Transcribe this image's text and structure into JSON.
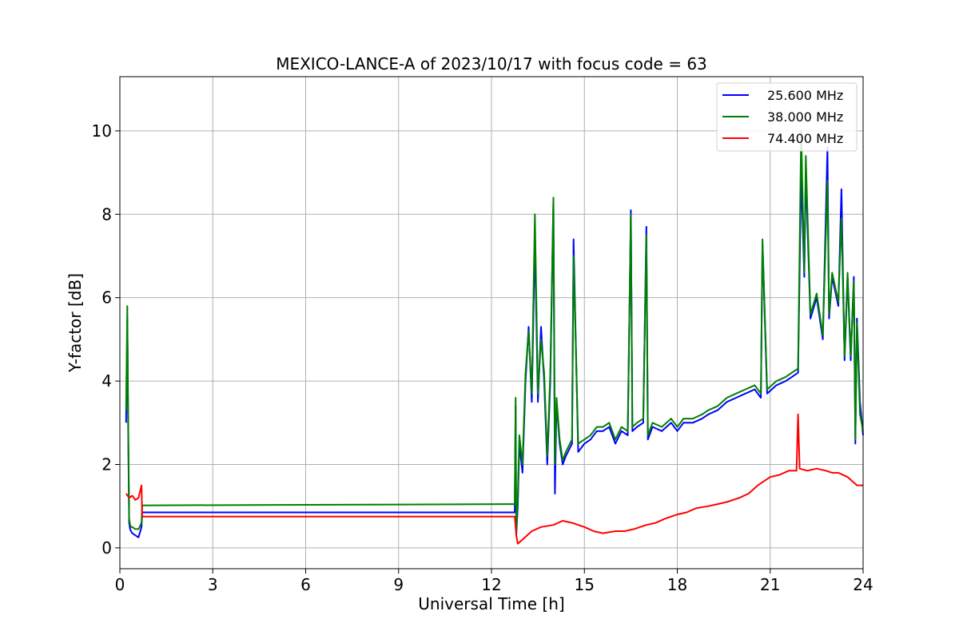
{
  "chart_data": {
    "type": "line",
    "title": "MEXICO-LANCE-A of 2023/10/17 with focus code = 63",
    "xlabel": "Universal Time [h]",
    "ylabel": "Y-factor [dB]",
    "xlim": [
      0,
      24
    ],
    "ylim": [
      -0.5,
      11.3
    ],
    "xticks": [
      0,
      3,
      6,
      9,
      12,
      15,
      18,
      21,
      24
    ],
    "yticks": [
      0,
      2,
      4,
      6,
      8,
      10
    ],
    "grid": true,
    "legend_position": "top-right",
    "series": [
      {
        "name": "25.600 MHz",
        "color": "#0000ff",
        "x": [
          0.2,
          0.24,
          0.27,
          0.3,
          0.33,
          0.36,
          0.4,
          0.5,
          0.6,
          0.7,
          0.72,
          12.75,
          12.78,
          12.8,
          12.85,
          12.9,
          13.0,
          13.1,
          13.2,
          13.3,
          13.4,
          13.5,
          13.6,
          13.7,
          13.8,
          13.9,
          14.0,
          14.05,
          14.1,
          14.2,
          14.3,
          14.4,
          14.6,
          14.65,
          14.8,
          15.0,
          15.2,
          15.4,
          15.6,
          15.8,
          16.0,
          16.2,
          16.4,
          16.5,
          16.55,
          16.7,
          16.9,
          17.0,
          17.05,
          17.2,
          17.5,
          17.8,
          18.0,
          18.2,
          18.5,
          18.8,
          19.0,
          19.3,
          19.6,
          19.9,
          20.2,
          20.5,
          20.7,
          20.75,
          20.9,
          21.2,
          21.5,
          21.7,
          21.9,
          22.0,
          22.1,
          22.15,
          22.3,
          22.5,
          22.7,
          22.85,
          22.9,
          23.0,
          23.2,
          23.3,
          23.4,
          23.5,
          23.6,
          23.7,
          23.75,
          23.8,
          23.9,
          24.0
        ],
        "values": [
          3.0,
          5.5,
          2.6,
          0.6,
          0.45,
          0.4,
          0.35,
          0.3,
          0.25,
          0.5,
          0.85,
          0.85,
          3.4,
          0.3,
          1.0,
          2.5,
          1.8,
          4.0,
          5.3,
          3.5,
          7.4,
          3.5,
          5.3,
          4.0,
          2.0,
          4.0,
          8.3,
          1.3,
          3.5,
          2.5,
          2.0,
          2.2,
          2.5,
          7.4,
          2.3,
          2.5,
          2.6,
          2.8,
          2.8,
          2.9,
          2.5,
          2.8,
          2.7,
          8.1,
          2.8,
          2.9,
          3.0,
          7.7,
          2.6,
          2.9,
          2.8,
          3.0,
          2.8,
          3.0,
          3.0,
          3.1,
          3.2,
          3.3,
          3.5,
          3.6,
          3.7,
          3.8,
          3.6,
          7.3,
          3.7,
          3.9,
          4.0,
          4.1,
          4.2,
          9.0,
          6.5,
          9.0,
          5.5,
          6.0,
          5.0,
          9.6,
          5.5,
          6.5,
          5.8,
          8.6,
          4.5,
          6.5,
          4.5,
          6.5,
          2.5,
          5.5,
          3.5,
          2.7
        ]
      },
      {
        "name": "38.000 MHz",
        "color": "#008000",
        "x": [
          0.2,
          0.24,
          0.27,
          0.3,
          0.33,
          0.36,
          0.4,
          0.5,
          0.6,
          0.7,
          0.72,
          12.75,
          12.78,
          12.8,
          12.85,
          12.9,
          13.0,
          13.1,
          13.2,
          13.3,
          13.4,
          13.5,
          13.6,
          13.7,
          13.8,
          13.9,
          14.0,
          14.05,
          14.1,
          14.2,
          14.3,
          14.4,
          14.6,
          14.65,
          14.8,
          15.0,
          15.2,
          15.4,
          15.6,
          15.8,
          16.0,
          16.2,
          16.4,
          16.5,
          16.55,
          16.7,
          16.9,
          17.0,
          17.05,
          17.2,
          17.5,
          17.8,
          18.0,
          18.2,
          18.5,
          18.8,
          19.0,
          19.3,
          19.6,
          19.9,
          20.2,
          20.5,
          20.7,
          20.75,
          20.9,
          21.2,
          21.5,
          21.7,
          21.9,
          22.0,
          22.1,
          22.15,
          22.3,
          22.5,
          22.7,
          22.85,
          22.9,
          23.0,
          23.2,
          23.3,
          23.4,
          23.5,
          23.6,
          23.7,
          23.75,
          23.8,
          23.9,
          24.0
        ],
        "values": [
          3.3,
          5.8,
          2.9,
          0.7,
          0.55,
          0.5,
          0.5,
          0.45,
          0.45,
          0.6,
          1.02,
          1.05,
          3.6,
          0.4,
          1.2,
          2.7,
          2.0,
          4.2,
          5.2,
          3.7,
          8.0,
          3.7,
          5.0,
          4.2,
          2.2,
          4.2,
          8.4,
          2.0,
          3.6,
          2.6,
          2.1,
          2.3,
          2.6,
          7.0,
          2.5,
          2.6,
          2.7,
          2.9,
          2.9,
          3.0,
          2.6,
          2.9,
          2.8,
          8.0,
          2.9,
          3.0,
          3.1,
          7.5,
          2.7,
          3.0,
          2.9,
          3.1,
          2.9,
          3.1,
          3.1,
          3.2,
          3.3,
          3.4,
          3.6,
          3.7,
          3.8,
          3.9,
          3.7,
          7.4,
          3.8,
          4.0,
          4.1,
          4.2,
          4.3,
          10.0,
          6.6,
          9.4,
          5.6,
          6.1,
          5.1,
          8.8,
          5.6,
          6.6,
          5.9,
          7.9,
          4.6,
          6.6,
          4.6,
          6.4,
          2.6,
          5.4,
          3.2,
          2.8
        ]
      },
      {
        "name": "74.400 MHz",
        "color": "#ff0000",
        "x": [
          0.2,
          0.3,
          0.4,
          0.5,
          0.6,
          0.7,
          0.72,
          12.75,
          12.8,
          12.85,
          13.0,
          13.3,
          13.6,
          14.0,
          14.3,
          14.6,
          15.0,
          15.3,
          15.6,
          16.0,
          16.3,
          16.6,
          17.0,
          17.3,
          17.6,
          18.0,
          18.3,
          18.6,
          19.0,
          19.3,
          19.6,
          20.0,
          20.3,
          20.6,
          21.0,
          21.3,
          21.6,
          21.85,
          21.9,
          21.95,
          22.2,
          22.5,
          22.8,
          23.0,
          23.2,
          23.5,
          23.8,
          24.0
        ],
        "values": [
          1.3,
          1.2,
          1.25,
          1.15,
          1.2,
          1.5,
          0.75,
          0.75,
          0.3,
          0.1,
          0.2,
          0.4,
          0.5,
          0.55,
          0.65,
          0.6,
          0.5,
          0.4,
          0.35,
          0.4,
          0.4,
          0.45,
          0.55,
          0.6,
          0.7,
          0.8,
          0.85,
          0.95,
          1.0,
          1.05,
          1.1,
          1.2,
          1.3,
          1.5,
          1.7,
          1.75,
          1.85,
          1.85,
          3.2,
          1.9,
          1.85,
          1.9,
          1.85,
          1.8,
          1.8,
          1.7,
          1.5,
          1.5
        ]
      }
    ]
  }
}
